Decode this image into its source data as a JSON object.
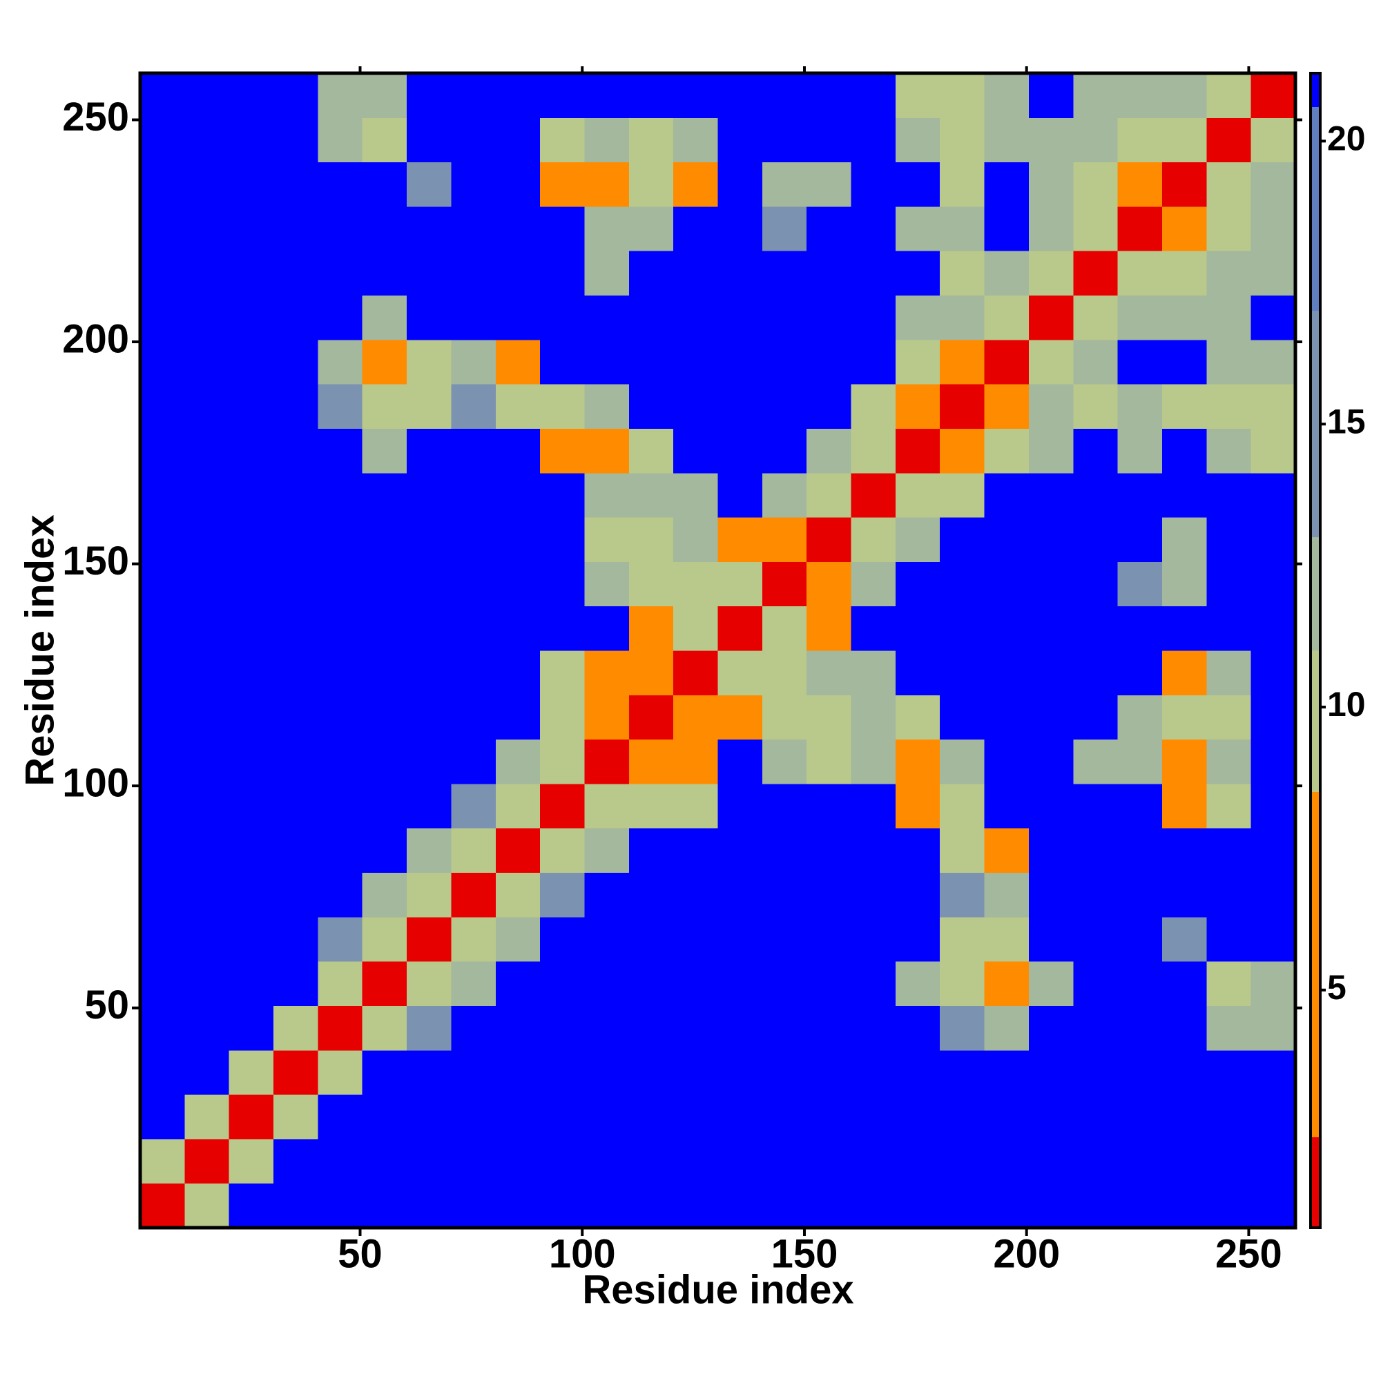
{
  "chart_data": {
    "type": "heatmap",
    "xlabel": "Residue index",
    "ylabel": "Residue index",
    "x_bins": [
      0.5,
      10.5,
      20.5,
      30.5,
      40.5,
      50.5,
      60.5,
      70.5,
      80.5,
      90.5,
      100.5,
      110.5,
      120.5,
      130.5,
      140.5,
      150.5,
      160.5,
      170.5,
      180.5,
      190.5,
      200.5,
      210.5,
      220.5,
      230.5,
      240.5,
      250.5,
      260.5
    ],
    "y_bins": [
      0.5,
      10.5,
      20.5,
      30.5,
      40.5,
      50.5,
      60.5,
      70.5,
      80.5,
      90.5,
      100.5,
      110.5,
      120.5,
      130.5,
      140.5,
      150.5,
      160.5,
      170.5,
      180.5,
      190.5,
      200.5,
      210.5,
      220.5,
      230.5,
      240.5,
      250.5,
      260.5
    ],
    "z": [
      [
        2,
        10,
        21,
        21,
        21,
        21,
        21,
        21,
        21,
        21,
        21,
        21,
        21,
        21,
        21,
        21,
        21,
        21,
        21,
        21,
        21,
        21,
        21,
        21,
        21,
        21
      ],
      [
        10,
        2,
        11,
        21,
        21,
        21,
        21,
        21,
        21,
        21,
        21,
        21,
        21,
        21,
        21,
        21,
        21,
        21,
        21,
        21,
        21,
        21,
        21,
        21,
        21,
        21
      ],
      [
        21,
        11,
        2,
        11,
        21,
        21,
        21,
        21,
        21,
        21,
        21,
        21,
        21,
        21,
        21,
        21,
        21,
        21,
        21,
        21,
        21,
        21,
        21,
        21,
        21,
        21
      ],
      [
        21,
        21,
        11,
        2,
        10,
        21,
        21,
        21,
        21,
        21,
        21,
        21,
        21,
        21,
        21,
        21,
        21,
        21,
        21,
        21,
        21,
        21,
        21,
        21,
        21,
        21
      ],
      [
        21,
        21,
        21,
        10,
        2,
        10,
        14,
        21,
        21,
        21,
        21,
        21,
        21,
        21,
        21,
        21,
        21,
        21,
        14,
        12,
        21,
        21,
        21,
        21,
        12,
        13
      ],
      [
        21,
        21,
        21,
        21,
        10,
        2,
        9,
        12,
        21,
        21,
        21,
        21,
        21,
        21,
        21,
        21,
        21,
        12,
        11,
        7,
        12,
        21,
        21,
        21,
        9,
        12
      ],
      [
        21,
        21,
        21,
        21,
        14,
        9,
        2,
        9,
        12,
        21,
        21,
        21,
        21,
        21,
        21,
        21,
        21,
        21,
        10,
        10,
        21,
        21,
        21,
        14,
        21,
        21
      ],
      [
        21,
        21,
        21,
        21,
        21,
        12,
        9,
        2,
        10,
        14,
        21,
        21,
        21,
        21,
        21,
        21,
        21,
        21,
        14,
        13,
        21,
        21,
        21,
        21,
        21,
        21
      ],
      [
        21,
        21,
        21,
        21,
        21,
        21,
        12,
        10,
        2,
        10,
        13,
        21,
        21,
        21,
        21,
        21,
        21,
        21,
        11,
        8,
        21,
        21,
        21,
        21,
        21,
        21
      ],
      [
        21,
        21,
        21,
        21,
        21,
        21,
        21,
        14,
        10,
        2,
        9,
        11,
        11,
        21,
        21,
        21,
        21,
        8,
        11,
        21,
        21,
        21,
        21,
        8,
        9,
        21
      ],
      [
        21,
        21,
        21,
        21,
        21,
        21,
        21,
        21,
        13,
        9,
        2,
        8,
        6,
        21,
        12,
        11,
        12,
        7,
        12,
        21,
        21,
        13,
        12,
        8,
        12,
        21
      ],
      [
        21,
        21,
        21,
        21,
        21,
        21,
        21,
        21,
        21,
        11,
        8,
        2,
        8,
        8,
        10,
        11,
        12,
        11,
        21,
        21,
        21,
        21,
        13,
        11,
        11,
        21
      ],
      [
        21,
        21,
        21,
        21,
        21,
        21,
        21,
        21,
        21,
        11,
        6,
        8,
        2,
        9,
        9,
        12,
        13,
        21,
        21,
        21,
        21,
        21,
        21,
        7,
        12,
        21
      ],
      [
        21,
        21,
        21,
        21,
        21,
        21,
        21,
        21,
        21,
        21,
        21,
        8,
        9,
        2,
        11,
        8,
        21,
        21,
        21,
        21,
        21,
        21,
        21,
        21,
        21,
        21
      ],
      [
        21,
        21,
        21,
        21,
        21,
        21,
        21,
        21,
        21,
        21,
        12,
        10,
        9,
        11,
        2,
        8,
        13,
        21,
        21,
        21,
        21,
        21,
        14,
        12,
        21,
        21
      ],
      [
        21,
        21,
        21,
        21,
        21,
        21,
        21,
        21,
        21,
        21,
        11,
        11,
        12,
        8,
        8,
        2,
        9,
        12,
        21,
        21,
        21,
        21,
        21,
        13,
        21,
        21
      ],
      [
        21,
        21,
        21,
        21,
        21,
        21,
        21,
        21,
        21,
        21,
        12,
        12,
        13,
        21,
        13,
        9,
        2,
        9,
        11,
        21,
        21,
        21,
        21,
        21,
        21,
        21
      ],
      [
        21,
        21,
        21,
        21,
        21,
        12,
        21,
        21,
        21,
        8,
        7,
        11,
        21,
        21,
        21,
        12,
        9,
        2,
        8,
        9,
        13,
        21,
        12,
        21,
        12,
        11
      ],
      [
        21,
        21,
        21,
        21,
        14,
        11,
        10,
        14,
        11,
        11,
        12,
        21,
        21,
        21,
        21,
        21,
        11,
        8,
        2,
        8,
        12,
        11,
        12,
        11,
        10,
        11
      ],
      [
        21,
        21,
        21,
        21,
        12,
        7,
        10,
        13,
        8,
        21,
        21,
        21,
        21,
        21,
        21,
        21,
        21,
        9,
        8,
        2,
        10,
        12,
        21,
        21,
        12,
        13
      ],
      [
        21,
        21,
        21,
        21,
        21,
        12,
        21,
        21,
        21,
        21,
        21,
        21,
        21,
        21,
        21,
        21,
        21,
        13,
        12,
        10,
        2,
        11,
        12,
        12,
        13,
        21
      ],
      [
        21,
        21,
        21,
        21,
        21,
        21,
        21,
        21,
        21,
        21,
        13,
        21,
        21,
        21,
        21,
        21,
        21,
        21,
        11,
        12,
        11,
        2,
        9,
        10,
        12,
        13
      ],
      [
        21,
        21,
        21,
        21,
        21,
        21,
        21,
        21,
        21,
        21,
        12,
        13,
        21,
        21,
        14,
        21,
        21,
        12,
        12,
        21,
        12,
        9,
        2,
        8,
        11,
        13
      ],
      [
        21,
        21,
        21,
        21,
        21,
        21,
        14,
        21,
        21,
        8,
        8,
        11,
        7,
        21,
        12,
        13,
        21,
        21,
        11,
        21,
        12,
        10,
        8,
        2,
        9,
        12
      ],
      [
        21,
        21,
        21,
        21,
        12,
        9,
        21,
        21,
        21,
        9,
        12,
        11,
        12,
        21,
        21,
        21,
        21,
        12,
        10,
        12,
        13,
        12,
        11,
        9,
        2,
        10
      ],
      [
        21,
        21,
        21,
        21,
        13,
        12,
        21,
        21,
        21,
        21,
        21,
        21,
        21,
        21,
        21,
        21,
        21,
        11,
        11,
        13,
        21,
        13,
        13,
        12,
        10,
        2
      ]
    ],
    "xlim": [
      0.5,
      260.5
    ],
    "ylim": [
      0.5,
      260.5
    ],
    "xticks": [
      50,
      100,
      150,
      200,
      250
    ],
    "yticks": [
      50,
      100,
      150,
      200,
      250
    ],
    "clim": [
      0.8,
      21.2
    ],
    "cticks": [
      5,
      10,
      15,
      20
    ],
    "color_levels": [
      0.8,
      2.4,
      8.5,
      11,
      13,
      17,
      20.6,
      21.2
    ],
    "colors": [
      "#e60000",
      "#ff8c00",
      "#b9c98c",
      "#a3b89c",
      "#7b92b0",
      "#5f7fc0",
      "#0000ff"
    ]
  }
}
